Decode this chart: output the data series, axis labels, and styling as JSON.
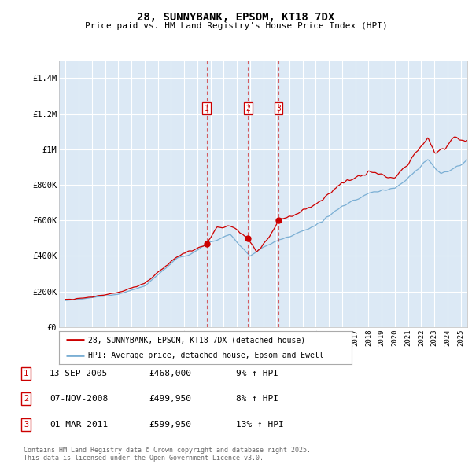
{
  "title": "28, SUNNYBANK, EPSOM, KT18 7DX",
  "subtitle": "Price paid vs. HM Land Registry's House Price Index (HPI)",
  "bg_color": "#dce9f5",
  "red_color": "#cc0000",
  "blue_color": "#7bafd4",
  "grid_color": "#ffffff",
  "ylim": [
    0,
    1500000
  ],
  "yticks": [
    0,
    200000,
    400000,
    600000,
    800000,
    1000000,
    1200000,
    1400000
  ],
  "ytick_labels": [
    "£0",
    "£200K",
    "£400K",
    "£600K",
    "£800K",
    "£1M",
    "£1.2M",
    "£1.4M"
  ],
  "transactions": [
    {
      "num": 1,
      "date_str": "13-SEP-2005",
      "price": 468000,
      "pct": "9%",
      "x_year": 2005.7
    },
    {
      "num": 2,
      "date_str": "07-NOV-2008",
      "price": 499950,
      "pct": "8%",
      "x_year": 2008.85
    },
    {
      "num": 3,
      "date_str": "01-MAR-2011",
      "price": 599950,
      "pct": "13%",
      "x_year": 2011.17
    }
  ],
  "legend_label_red": "28, SUNNYBANK, EPSOM, KT18 7DX (detached house)",
  "legend_label_blue": "HPI: Average price, detached house, Epsom and Ewell",
  "footer": "Contains HM Land Registry data © Crown copyright and database right 2025.\nThis data is licensed under the Open Government Licence v3.0.",
  "xlim_start": 1994.5,
  "xlim_end": 2025.5
}
